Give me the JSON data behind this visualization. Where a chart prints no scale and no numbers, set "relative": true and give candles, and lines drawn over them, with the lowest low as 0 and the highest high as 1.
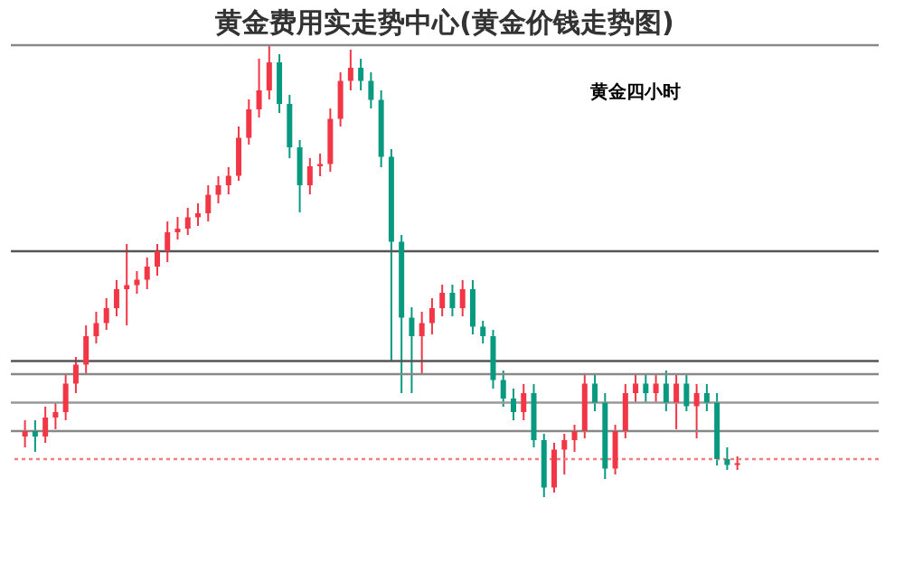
{
  "chart_data": {
    "type": "candlestick",
    "title": "黄金费用实走势中心(黄金价钱走势图)",
    "annotations": [
      "黄金四小时"
    ],
    "relative": true,
    "categories": [
      null,
      null,
      null,
      null,
      null,
      null,
      null,
      null,
      null,
      null,
      null,
      null,
      null,
      null,
      null,
      null,
      null,
      null,
      null,
      null,
      null,
      null,
      null,
      null,
      null,
      null,
      null,
      null,
      null,
      null,
      null,
      null,
      null,
      null,
      null,
      null,
      null,
      null,
      null,
      null,
      null,
      null,
      null,
      null,
      null,
      null,
      null,
      null,
      null,
      null,
      null,
      null,
      null,
      null,
      null,
      null,
      null,
      null,
      null,
      null,
      null,
      null,
      null,
      null,
      null,
      null,
      null,
      null,
      null,
      null,
      null
    ],
    "ohlc": [
      [
        0.134,
        0.17,
        0.11,
        0.146
      ],
      [
        0.146,
        0.17,
        0.1,
        0.134
      ],
      [
        0.134,
        0.2,
        0.12,
        0.176
      ],
      [
        0.176,
        0.21,
        0.15,
        0.188
      ],
      [
        0.188,
        0.27,
        0.17,
        0.251
      ],
      [
        0.251,
        0.31,
        0.23,
        0.293
      ],
      [
        0.293,
        0.38,
        0.27,
        0.356
      ],
      [
        0.356,
        0.41,
        0.34,
        0.385
      ],
      [
        0.385,
        0.44,
        0.37,
        0.418
      ],
      [
        0.418,
        0.48,
        0.4,
        0.46
      ],
      [
        0.46,
        0.56,
        0.38,
        0.469
      ],
      [
        0.469,
        0.5,
        0.45,
        0.481
      ],
      [
        0.481,
        0.53,
        0.46,
        0.51
      ],
      [
        0.51,
        0.56,
        0.49,
        0.544
      ],
      [
        0.544,
        0.61,
        0.52,
        0.586
      ],
      [
        0.586,
        0.62,
        0.57,
        0.594
      ],
      [
        0.594,
        0.64,
        0.58,
        0.619
      ],
      [
        0.619,
        0.65,
        0.6,
        0.628
      ],
      [
        0.628,
        0.69,
        0.61,
        0.669
      ],
      [
        0.669,
        0.71,
        0.65,
        0.69
      ],
      [
        0.69,
        0.73,
        0.67,
        0.711
      ],
      [
        0.711,
        0.82,
        0.7,
        0.795
      ],
      [
        0.795,
        0.88,
        0.78,
        0.858
      ],
      [
        0.858,
        0.97,
        0.84,
        0.9
      ],
      [
        0.9,
        1.0,
        0.88,
        0.962
      ],
      [
        0.962,
        0.98,
        0.85,
        0.87
      ],
      [
        0.87,
        0.89,
        0.75,
        0.774
      ],
      [
        0.774,
        0.79,
        0.63,
        0.69
      ],
      [
        0.69,
        0.75,
        0.67,
        0.732
      ],
      [
        0.732,
        0.76,
        0.71,
        0.737
      ],
      [
        0.737,
        0.86,
        0.72,
        0.837
      ],
      [
        0.837,
        0.94,
        0.82,
        0.921
      ],
      [
        0.921,
        0.99,
        0.9,
        0.95
      ],
      [
        0.95,
        0.97,
        0.9,
        0.921
      ],
      [
        0.921,
        0.94,
        0.86,
        0.879
      ],
      [
        0.879,
        0.9,
        0.73,
        0.753
      ],
      [
        0.753,
        0.77,
        0.3,
        0.565
      ],
      [
        0.565,
        0.58,
        0.23,
        0.397
      ],
      [
        0.397,
        0.42,
        0.23,
        0.356
      ],
      [
        0.356,
        0.41,
        0.27,
        0.385
      ],
      [
        0.385,
        0.44,
        0.36,
        0.418
      ],
      [
        0.418,
        0.47,
        0.4,
        0.452
      ],
      [
        0.452,
        0.47,
        0.4,
        0.418
      ],
      [
        0.418,
        0.48,
        0.4,
        0.46
      ],
      [
        0.46,
        0.48,
        0.36,
        0.377
      ],
      [
        0.377,
        0.39,
        0.34,
        0.356
      ],
      [
        0.356,
        0.37,
        0.24,
        0.259
      ],
      [
        0.259,
        0.28,
        0.2,
        0.218
      ],
      [
        0.218,
        0.24,
        0.17,
        0.188
      ],
      [
        0.188,
        0.25,
        0.17,
        0.23
      ],
      [
        0.23,
        0.25,
        0.11,
        0.126
      ],
      [
        0.126,
        0.14,
        0.0,
        0.021
      ],
      [
        0.021,
        0.12,
        0.01,
        0.105
      ],
      [
        0.105,
        0.14,
        0.05,
        0.126
      ],
      [
        0.126,
        0.16,
        0.1,
        0.146
      ],
      [
        0.146,
        0.27,
        0.13,
        0.251
      ],
      [
        0.251,
        0.27,
        0.19,
        0.209
      ],
      [
        0.209,
        0.23,
        0.04,
        0.063
      ],
      [
        0.063,
        0.16,
        0.05,
        0.146
      ],
      [
        0.146,
        0.25,
        0.13,
        0.23
      ],
      [
        0.23,
        0.27,
        0.21,
        0.251
      ],
      [
        0.251,
        0.27,
        0.21,
        0.23
      ],
      [
        0.23,
        0.27,
        0.21,
        0.251
      ],
      [
        0.251,
        0.28,
        0.19,
        0.209
      ],
      [
        0.209,
        0.27,
        0.15,
        0.251
      ],
      [
        0.251,
        0.27,
        0.19,
        0.201
      ],
      [
        0.201,
        0.25,
        0.13,
        0.23
      ],
      [
        0.23,
        0.25,
        0.19,
        0.209
      ],
      [
        0.209,
        0.23,
        0.07,
        0.084
      ],
      [
        0.084,
        0.11,
        0.06,
        0.071
      ],
      [
        0.071,
        0.09,
        0.06,
        0.075
      ]
    ],
    "ref_lines": [
      {
        "axis": "y",
        "value": 1.0,
        "color": "#888888"
      },
      {
        "axis": "y",
        "value": 0.544,
        "color": "#555555"
      },
      {
        "axis": "y",
        "value": 0.301,
        "color": "#555555"
      },
      {
        "axis": "y",
        "value": 0.272,
        "color": "#888888"
      },
      {
        "axis": "y",
        "value": 0.209,
        "color": "#999999"
      },
      {
        "axis": "y",
        "value": 0.146,
        "color": "#888888"
      },
      {
        "axis": "y",
        "value": 0.084,
        "color": "#f08080",
        "line_style": "dotted"
      }
    ]
  }
}
